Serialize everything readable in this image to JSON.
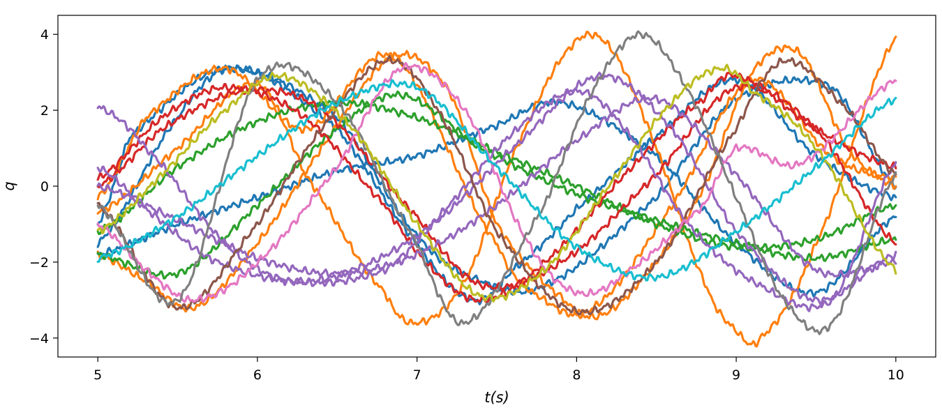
{
  "chart_data": {
    "type": "line",
    "title": "",
    "xlabel": "t(s)",
    "ylabel": "q",
    "xlim": [
      4.75,
      10.25
    ],
    "ylim": [
      -4.5,
      4.5
    ],
    "x_ticks": [
      5,
      6,
      7,
      8,
      9,
      10
    ],
    "y_ticks": [
      4,
      2,
      0,
      -2,
      -4
    ],
    "x_tick_labels": [
      "5",
      "6",
      "7",
      "8",
      "9",
      "10"
    ],
    "y_tick_labels": [
      "4",
      "2",
      "0",
      "−2",
      "−4"
    ],
    "grid": false,
    "legend": "none",
    "noise_amplitude": 0.1,
    "series": [
      {
        "color": "#1f77b4",
        "x": [
          5.0,
          5.5,
          5.85,
          6.5,
          7.0,
          7.35,
          7.6,
          8.0,
          8.5,
          9.0,
          9.5,
          10.0
        ],
        "y": [
          -1.5,
          1.8,
          3.1,
          1.5,
          -1.5,
          -3.0,
          -2.2,
          -0.6,
          1.3,
          2.8,
          0.8,
          -0.3
        ]
      },
      {
        "color": "#1f77b4",
        "x": [
          5.0,
          5.5,
          6.0,
          6.5,
          7.0,
          7.5,
          7.9,
          8.5,
          9.0,
          9.5,
          10.0
        ],
        "y": [
          -1.8,
          -1.0,
          -0.3,
          0.4,
          0.8,
          1.6,
          2.2,
          0.8,
          -1.5,
          -2.8,
          -0.8
        ]
      },
      {
        "color": "#1f77b4",
        "x": [
          5.0,
          5.2,
          5.8,
          6.5,
          7.0,
          7.4,
          7.8,
          8.5,
          9.0,
          9.6,
          10.0
        ],
        "y": [
          -1.0,
          1.3,
          3.1,
          1.8,
          -1.3,
          -2.5,
          -2.6,
          -0.3,
          2.3,
          2.6,
          0.0
        ]
      },
      {
        "color": "#ff7f0e",
        "x": [
          5.0,
          5.3,
          5.8,
          6.3,
          6.85,
          7.5,
          7.8,
          8.1,
          8.6,
          9.1,
          9.6,
          10.0
        ],
        "y": [
          -0.3,
          1.8,
          3.1,
          1.5,
          3.4,
          -1.5,
          -3.0,
          -3.2,
          -0.5,
          2.8,
          0.8,
          0.2
        ]
      },
      {
        "color": "#ff7f0e",
        "x": [
          5.0,
          5.3,
          5.6,
          6.0,
          6.4,
          6.85,
          7.2,
          7.5,
          7.9,
          8.15,
          8.5,
          8.8,
          9.1,
          9.4,
          9.7,
          10.0
        ],
        "y": [
          -1.8,
          -2.5,
          -3.2,
          -1.5,
          1.0,
          3.4,
          2.5,
          -1.0,
          -2.9,
          -3.4,
          -2.0,
          0.0,
          3.0,
          3.5,
          1.0,
          0.0
        ]
      },
      {
        "color": "#ff7f0e",
        "x": [
          5.0,
          5.5,
          6.0,
          6.3,
          6.8,
          7.0,
          7.3,
          7.6,
          7.95,
          8.2,
          8.5,
          8.8,
          9.0,
          9.15,
          9.5,
          10.0
        ],
        "y": [
          -0.7,
          1.0,
          2.7,
          0.3,
          -2.8,
          -3.6,
          -2.5,
          0.8,
          3.6,
          3.7,
          1.0,
          -2.5,
          -3.8,
          -4.0,
          -1.5,
          3.9
        ]
      },
      {
        "color": "#2ca02c",
        "x": [
          5.0,
          5.5,
          6.0,
          6.5,
          6.9,
          7.4,
          8.0,
          8.5,
          9.0,
          9.5,
          10.0
        ],
        "y": [
          -1.8,
          -2.3,
          -0.5,
          1.5,
          2.4,
          1.0,
          -0.2,
          -0.9,
          -1.5,
          -1.9,
          -1.4
        ]
      },
      {
        "color": "#2ca02c",
        "x": [
          5.0,
          5.5,
          6.0,
          6.5,
          7.0,
          7.5,
          8.0,
          8.5,
          9.0,
          9.5,
          10.0
        ],
        "y": [
          -1.2,
          0.5,
          1.7,
          2.2,
          1.8,
          0.9,
          0.0,
          -1.0,
          -1.6,
          -1.4,
          -0.5
        ]
      },
      {
        "color": "#d62728",
        "x": [
          5.0,
          5.4,
          5.8,
          6.3,
          6.8,
          7.1,
          7.4,
          7.8,
          8.3,
          8.8,
          9.0,
          9.5,
          10.0
        ],
        "y": [
          0.2,
          1.8,
          2.6,
          1.8,
          -0.5,
          -2.2,
          -3.0,
          -2.0,
          0.3,
          2.3,
          2.9,
          1.5,
          0.5
        ]
      },
      {
        "color": "#d62728",
        "x": [
          5.0,
          5.4,
          5.9,
          6.4,
          7.0,
          7.4,
          7.9,
          8.5,
          9.0,
          9.5,
          10.0
        ],
        "y": [
          0.0,
          1.5,
          2.5,
          2.0,
          -0.8,
          -2.6,
          -2.0,
          0.3,
          2.6,
          1.5,
          -1.5
        ]
      },
      {
        "color": "#9467bd",
        "x": [
          5.0,
          5.3,
          5.8,
          6.2,
          6.8,
          7.2,
          7.6,
          8.0,
          8.3,
          8.7,
          9.1,
          9.6,
          10.0
        ],
        "y": [
          2.1,
          1.0,
          -1.5,
          -2.5,
          -2.2,
          -0.5,
          1.4,
          2.5,
          1.5,
          -1.0,
          -2.5,
          -3.0,
          0.6
        ]
      },
      {
        "color": "#9467bd",
        "x": [
          5.0,
          5.5,
          6.0,
          6.5,
          7.0,
          7.5,
          8.0,
          8.5,
          9.0,
          9.5,
          10.0
        ],
        "y": [
          0.0,
          -0.9,
          -1.9,
          -2.3,
          -1.8,
          -0.5,
          1.2,
          2.3,
          0.3,
          -2.2,
          -2.0
        ]
      },
      {
        "color": "#9467bd",
        "x": [
          5.0,
          5.3,
          5.7,
          6.2,
          6.6,
          7.1,
          7.6,
          8.15,
          8.6,
          9.0,
          9.5,
          10.0
        ],
        "y": [
          0.5,
          -0.6,
          -1.9,
          -2.5,
          -2.2,
          -1.0,
          1.0,
          2.9,
          1.5,
          -1.2,
          -3.0,
          -1.8
        ]
      },
      {
        "color": "#8c564b",
        "x": [
          5.0,
          5.5,
          6.0,
          6.4,
          6.8,
          7.1,
          7.5,
          8.0,
          8.5,
          9.0,
          9.3,
          9.7,
          10.0
        ],
        "y": [
          -0.5,
          -3.2,
          -1.0,
          1.5,
          3.3,
          2.2,
          -1.2,
          -3.3,
          -2.0,
          1.5,
          3.3,
          2.0,
          0.3
        ]
      },
      {
        "color": "#e377c2",
        "x": [
          5.0,
          5.3,
          5.6,
          6.0,
          6.5,
          6.9,
          7.3,
          7.7,
          8.0,
          8.3,
          8.8,
          9.0,
          9.4,
          10.0
        ],
        "y": [
          -1.0,
          -2.2,
          -3.0,
          -2.0,
          0.5,
          3.1,
          2.0,
          -1.5,
          -2.8,
          -2.3,
          -0.5,
          1.0,
          0.6,
          2.8
        ]
      },
      {
        "color": "#7f7f7f",
        "x": [
          5.0,
          5.5,
          6.0,
          6.5,
          7.0,
          7.3,
          7.8,
          8.1,
          8.4,
          8.7,
          9.0,
          9.3,
          9.6,
          10.0
        ],
        "y": [
          -0.5,
          -3.0,
          2.8,
          2.2,
          -1.5,
          -3.6,
          -0.5,
          2.5,
          4.0,
          2.5,
          -0.3,
          -3.0,
          -3.6,
          0.3
        ]
      },
      {
        "color": "#bcbd22",
        "x": [
          5.0,
          5.4,
          5.8,
          6.15,
          6.6,
          7.0,
          7.4,
          7.8,
          8.2,
          8.6,
          8.9,
          9.1,
          9.5,
          10.0
        ],
        "y": [
          -1.2,
          0.3,
          2.0,
          2.9,
          1.5,
          -1.0,
          -2.9,
          -2.2,
          0.0,
          2.2,
          3.1,
          2.5,
          1.0,
          -2.2
        ]
      },
      {
        "color": "#17becf",
        "x": [
          5.0,
          5.5,
          6.0,
          6.5,
          7.0,
          7.5,
          8.0,
          8.5,
          9.0,
          9.5,
          10.0
        ],
        "y": [
          -1.9,
          -0.8,
          0.8,
          2.2,
          2.6,
          0.5,
          -1.6,
          -2.4,
          -1.2,
          0.5,
          2.3
        ]
      }
    ]
  }
}
